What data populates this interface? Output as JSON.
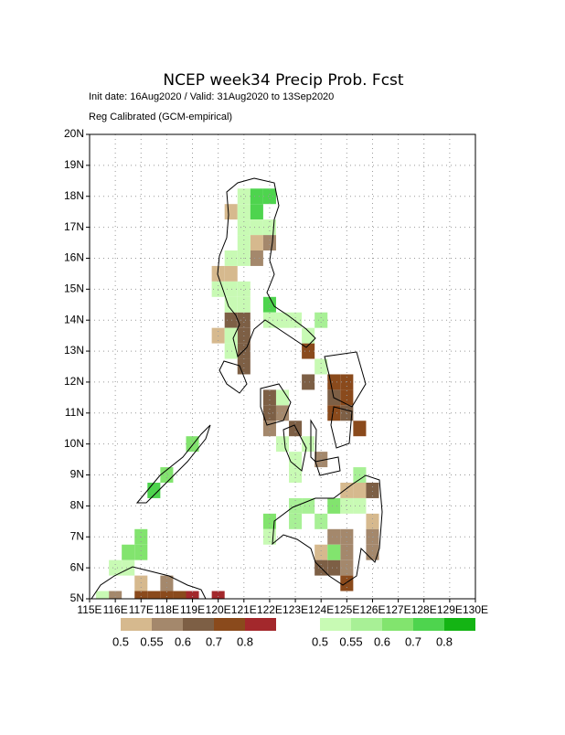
{
  "chart_data": {
    "type": "grid-map",
    "title": "NCEP week34 Precip Prob. Fcst",
    "subtitle": "Init date: 16Aug2020 / Valid: 31Aug2020 to 13Sep2020",
    "note": "Reg Calibrated (GCM-empirical)",
    "xlim": [
      115,
      130
    ],
    "ylim": [
      5,
      20
    ],
    "grid": true,
    "xticks": [
      {
        "value": 115,
        "label": "115E"
      },
      {
        "value": 116,
        "label": "116E"
      },
      {
        "value": 117,
        "label": "117E"
      },
      {
        "value": 118,
        "label": "118E"
      },
      {
        "value": 119,
        "label": "119E"
      },
      {
        "value": 120,
        "label": "120E"
      },
      {
        "value": 121,
        "label": "121E"
      },
      {
        "value": 122,
        "label": "122E"
      },
      {
        "value": 123,
        "label": "123E"
      },
      {
        "value": 124,
        "label": "124E"
      },
      {
        "value": 125,
        "label": "125E"
      },
      {
        "value": 126,
        "label": "126E"
      },
      {
        "value": 127,
        "label": "127E"
      },
      {
        "value": 128,
        "label": "128E"
      },
      {
        "value": 129,
        "label": "129E"
      },
      {
        "value": 130,
        "label": "130E"
      }
    ],
    "yticks": [
      {
        "value": 5,
        "label": "5N"
      },
      {
        "value": 6,
        "label": "6N"
      },
      {
        "value": 7,
        "label": "7N"
      },
      {
        "value": 8,
        "label": "8N"
      },
      {
        "value": 9,
        "label": "9N"
      },
      {
        "value": 10,
        "label": "10N"
      },
      {
        "value": 11,
        "label": "11N"
      },
      {
        "value": 12,
        "label": "12N"
      },
      {
        "value": 13,
        "label": "13N"
      },
      {
        "value": 14,
        "label": "14N"
      },
      {
        "value": 15,
        "label": "15N"
      },
      {
        "value": 16,
        "label": "16N"
      },
      {
        "value": 17,
        "label": "17N"
      },
      {
        "value": 18,
        "label": "18N"
      },
      {
        "value": 19,
        "label": "19N"
      },
      {
        "value": 20,
        "label": "20N"
      }
    ],
    "dry_levels": [
      0.5,
      0.55,
      0.6,
      0.7,
      0.8
    ],
    "dry_colors": [
      "#d6b98e",
      "#a4886c",
      "#7d5f45",
      "#8a4a1c",
      "#a3282c"
    ],
    "wet_levels": [
      0.5,
      0.55,
      0.6,
      0.7,
      0.8
    ],
    "wet_colors": [
      "#c8fab4",
      "#a8f096",
      "#82e46e",
      "#4ed44e",
      "#14b414"
    ],
    "dry_cells": [
      [
        120.5,
        17.5,
        0.5
      ],
      [
        121.5,
        16.5,
        0.5
      ],
      [
        122,
        16.5,
        0.55
      ],
      [
        121.5,
        16,
        0.55
      ],
      [
        120,
        15.5,
        0.5
      ],
      [
        120.5,
        15.5,
        0.5
      ],
      [
        120.5,
        14,
        0.6
      ],
      [
        121,
        14,
        0.6
      ],
      [
        120,
        13.5,
        0.5
      ],
      [
        121,
        13.5,
        0.6
      ],
      [
        121,
        13,
        0.6
      ],
      [
        123.5,
        13,
        0.7
      ],
      [
        121,
        12.5,
        0.6
      ],
      [
        123.5,
        12,
        0.6
      ],
      [
        124.5,
        12,
        0.7
      ],
      [
        125,
        12,
        0.7
      ],
      [
        122,
        11.5,
        0.6
      ],
      [
        124.5,
        11.5,
        0.6
      ],
      [
        125,
        11.5,
        0.7
      ],
      [
        122,
        11,
        0.6
      ],
      [
        122.5,
        11,
        0.55
      ],
      [
        124.5,
        11,
        0.7
      ],
      [
        125,
        11,
        0.6
      ],
      [
        122,
        10.5,
        0.55
      ],
      [
        123,
        10.5,
        0.6
      ],
      [
        125.5,
        10.5,
        0.7
      ],
      [
        124,
        9.5,
        0.55
      ],
      [
        125,
        8.5,
        0.5
      ],
      [
        125.5,
        8.5,
        0.5
      ],
      [
        126,
        8.5,
        0.6
      ],
      [
        126,
        7.5,
        0.5
      ],
      [
        124.5,
        7,
        0.55
      ],
      [
        125,
        7,
        0.55
      ],
      [
        126,
        7,
        0.55
      ],
      [
        124,
        6.5,
        0.5
      ],
      [
        125,
        6.5,
        0.55
      ],
      [
        126,
        6.5,
        0.55
      ],
      [
        124,
        6,
        0.6
      ],
      [
        124.5,
        6,
        0.6
      ],
      [
        125,
        6,
        0.55
      ],
      [
        125,
        5.5,
        0.7
      ],
      [
        117,
        5.5,
        0.5
      ],
      [
        118,
        5.5,
        0.55
      ],
      [
        116,
        5,
        0.55
      ],
      [
        117,
        5,
        0.7
      ],
      [
        117.5,
        5,
        0.7
      ],
      [
        118,
        5,
        0.7
      ],
      [
        118.5,
        5,
        0.7
      ],
      [
        119,
        5,
        0.8
      ],
      [
        120,
        5,
        0.8
      ]
    ],
    "wet_cells": [
      [
        121,
        18,
        0.5
      ],
      [
        121.5,
        18,
        0.7
      ],
      [
        122,
        18,
        0.7
      ],
      [
        121,
        17.5,
        0.5
      ],
      [
        121.5,
        17.5,
        0.7
      ],
      [
        121,
        17,
        0.5
      ],
      [
        121.5,
        17,
        0.5
      ],
      [
        122,
        17,
        0.5
      ],
      [
        121,
        16.5,
        0.5
      ],
      [
        120.5,
        16,
        0.5
      ],
      [
        121,
        16,
        0.5
      ],
      [
        120,
        15,
        0.5
      ],
      [
        120.5,
        15,
        0.5
      ],
      [
        121,
        15,
        0.5
      ],
      [
        120.5,
        14.5,
        0.5
      ],
      [
        121,
        14.5,
        0.5
      ],
      [
        122,
        14.5,
        0.7
      ],
      [
        122,
        14,
        0.5
      ],
      [
        122.5,
        14,
        0.5
      ],
      [
        123,
        14,
        0.5
      ],
      [
        124,
        14,
        0.55
      ],
      [
        120.5,
        13.5,
        0.5
      ],
      [
        123.5,
        13.5,
        0.5
      ],
      [
        120.5,
        13,
        0.5
      ],
      [
        124,
        12.5,
        0.5
      ],
      [
        122.5,
        11.5,
        0.5
      ],
      [
        122.5,
        10,
        0.5
      ],
      [
        123.5,
        10,
        0.5
      ],
      [
        123,
        9.5,
        0.5
      ],
      [
        123,
        9,
        0.5
      ],
      [
        125.5,
        9,
        0.55
      ],
      [
        123,
        8,
        0.55
      ],
      [
        123.5,
        8,
        0.55
      ],
      [
        124.5,
        8,
        0.6
      ],
      [
        125,
        8,
        0.5
      ],
      [
        125.5,
        8,
        0.5
      ],
      [
        122,
        7.5,
        0.6
      ],
      [
        123,
        7.5,
        0.55
      ],
      [
        124,
        7.5,
        0.55
      ],
      [
        122,
        7,
        0.5
      ],
      [
        124.5,
        6.5,
        0.6
      ],
      [
        119,
        10,
        0.6
      ],
      [
        118,
        9,
        0.6
      ],
      [
        117.5,
        8.5,
        0.7
      ],
      [
        117,
        7,
        0.6
      ],
      [
        116.5,
        6.5,
        0.6
      ],
      [
        117,
        6.5,
        0.6
      ],
      [
        116,
        6,
        0.5
      ],
      [
        116.5,
        6,
        0.5
      ],
      [
        115.5,
        5,
        0.5
      ]
    ]
  }
}
